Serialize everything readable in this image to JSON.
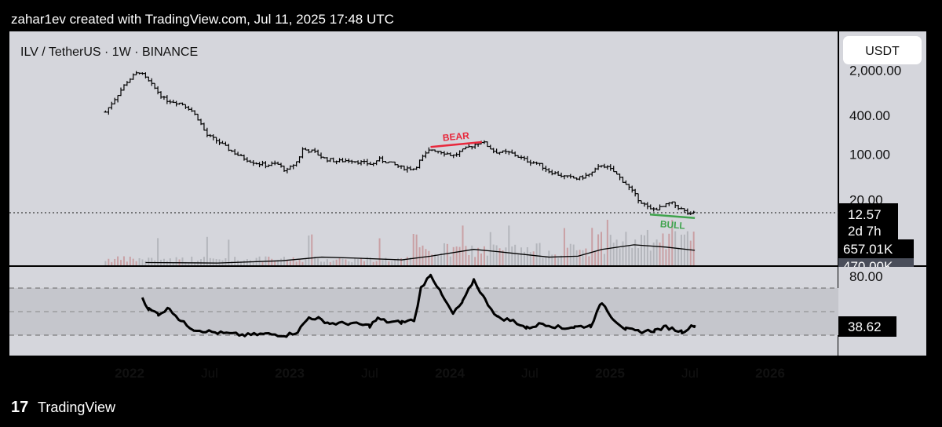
{
  "header": {
    "credit": "zahar1ev created with TradingView.com, Jul 11, 2025 17:48 UTC"
  },
  "symbol_title": "ILV / TetherUS · 1W · BINANCE",
  "currency_button": "USDT",
  "footer": {
    "brand": "TradingView"
  },
  "colors": {
    "background": "#000000",
    "panel": "#d5d6dc",
    "rsi_band": "#c5c6cc",
    "candle": "#000000",
    "volume_up": "#c9a0a4",
    "volume_down": "#b4b6bc",
    "volume_ma": "#000000",
    "bear": "#e8283c",
    "bull": "#3fa34d",
    "label_bg": "#000000",
    "label_text": "#ffffff"
  },
  "price_labels": {
    "last_price": "12.57",
    "countdown": "2d 7h",
    "volume": "657.01K",
    "volume_ma_partial": "470.00K",
    "rsi_value": "38.62"
  },
  "chart_data": [
    {
      "type": "candlestick",
      "title": "ILV / TetherUS · 1W · BINANCE",
      "yscale": "log",
      "y_ticks": [
        "2,000.00",
        "400.00",
        "100.00",
        "20.00"
      ],
      "x_ticks": [
        "2022",
        "Jul",
        "2023",
        "Jul",
        "2024",
        "Jul",
        "2025",
        "Jul",
        "2026"
      ],
      "last_price": 12.57,
      "weekly_close_series": [
        [
          2021.85,
          450
        ],
        [
          2021.92,
          800
        ],
        [
          2021.98,
          1300
        ],
        [
          2022.02,
          1600
        ],
        [
          2022.06,
          1900
        ],
        [
          2022.1,
          1500
        ],
        [
          2022.15,
          1100
        ],
        [
          2022.22,
          700
        ],
        [
          2022.28,
          650
        ],
        [
          2022.33,
          600
        ],
        [
          2022.38,
          500
        ],
        [
          2022.43,
          350
        ],
        [
          2022.48,
          200
        ],
        [
          2022.55,
          160
        ],
        [
          2022.62,
          120
        ],
        [
          2022.7,
          90
        ],
        [
          2022.78,
          75
        ],
        [
          2022.85,
          68
        ],
        [
          2022.92,
          72
        ],
        [
          2022.98,
          55
        ],
        [
          2023.05,
          80
        ],
        [
          2023.08,
          120
        ],
        [
          2023.15,
          110
        ],
        [
          2023.22,
          85
        ],
        [
          2023.3,
          78
        ],
        [
          2023.38,
          82
        ],
        [
          2023.45,
          75
        ],
        [
          2023.52,
          70
        ],
        [
          2023.55,
          85
        ],
        [
          2023.62,
          75
        ],
        [
          2023.7,
          62
        ],
        [
          2023.78,
          60
        ],
        [
          2023.82,
          85
        ],
        [
          2023.88,
          120
        ],
        [
          2023.95,
          110
        ],
        [
          2024.02,
          95
        ],
        [
          2024.12,
          130
        ],
        [
          2024.2,
          160
        ],
        [
          2024.28,
          110
        ],
        [
          2024.38,
          105
        ],
        [
          2024.48,
          80
        ],
        [
          2024.55,
          72
        ],
        [
          2024.62,
          55
        ],
        [
          2024.72,
          45
        ],
        [
          2024.8,
          42
        ],
        [
          2024.88,
          50
        ],
        [
          2024.95,
          70
        ],
        [
          2025.02,
          55
        ],
        [
          2025.1,
          35
        ],
        [
          2025.18,
          20
        ],
        [
          2025.25,
          14
        ],
        [
          2025.32,
          15
        ],
        [
          2025.38,
          18
        ],
        [
          2025.45,
          14
        ],
        [
          2025.5,
          11.5
        ],
        [
          2025.53,
          12.57
        ]
      ],
      "annotations": [
        {
          "text": "BEAR",
          "kind": "trendline",
          "from": [
            2023.88,
            130
          ],
          "to": [
            2024.2,
            155
          ]
        },
        {
          "text": "BULL",
          "kind": "trendline",
          "from": [
            2025.25,
            11.8
          ],
          "to": [
            2025.53,
            10.4
          ]
        }
      ]
    },
    {
      "type": "bar",
      "title": "Volume",
      "ma_series": [
        [
          2022.1,
          0.06
        ],
        [
          2022.55,
          0.05
        ],
        [
          2022.95,
          0.1
        ],
        [
          2023.2,
          0.18
        ],
        [
          2023.4,
          0.16
        ],
        [
          2023.7,
          0.12
        ],
        [
          2023.88,
          0.2
        ],
        [
          2024.15,
          0.35
        ],
        [
          2024.3,
          0.3
        ],
        [
          2024.62,
          0.18
        ],
        [
          2024.8,
          0.2
        ],
        [
          2024.95,
          0.35
        ],
        [
          2025.15,
          0.45
        ],
        [
          2025.35,
          0.4
        ],
        [
          2025.53,
          0.33
        ]
      ],
      "value_label": "657.01K"
    },
    {
      "type": "line",
      "title": "RSI",
      "ylim": [
        20,
        90
      ],
      "y_ticks": [
        "80.00"
      ],
      "bands": [
        70,
        50,
        30
      ],
      "last_value": 38.62,
      "series": [
        {
          "values": [
            [
              2022.08,
              62
            ],
            [
              2022.12,
              52
            ],
            [
              2022.18,
              48
            ],
            [
              2022.25,
              53
            ],
            [
              2022.32,
              42
            ],
            [
              2022.4,
              35
            ],
            [
              2022.55,
              32
            ],
            [
              2022.72,
              30
            ],
            [
              2022.85,
              31
            ],
            [
              2022.98,
              30
            ],
            [
              2023.05,
              33
            ],
            [
              2023.12,
              45
            ],
            [
              2023.18,
              44
            ],
            [
              2023.25,
              40
            ],
            [
              2023.38,
              40
            ],
            [
              2023.5,
              38
            ],
            [
              2023.55,
              44
            ],
            [
              2023.62,
              41
            ],
            [
              2023.7,
              41
            ],
            [
              2023.78,
              43
            ],
            [
              2023.82,
              70
            ],
            [
              2023.88,
              82
            ],
            [
              2023.95,
              64
            ],
            [
              2024.02,
              48
            ],
            [
              2024.08,
              58
            ],
            [
              2024.15,
              77
            ],
            [
              2024.22,
              60
            ],
            [
              2024.3,
              45
            ],
            [
              2024.4,
              42
            ],
            [
              2024.48,
              36
            ],
            [
              2024.58,
              40
            ],
            [
              2024.7,
              36
            ],
            [
              2024.78,
              37
            ],
            [
              2024.88,
              38
            ],
            [
              2024.95,
              58
            ],
            [
              2025.02,
              44
            ],
            [
              2025.1,
              35
            ],
            [
              2025.18,
              33
            ],
            [
              2025.28,
              34
            ],
            [
              2025.35,
              37
            ],
            [
              2025.45,
              33
            ],
            [
              2025.53,
              38.62
            ]
          ]
        }
      ]
    }
  ]
}
